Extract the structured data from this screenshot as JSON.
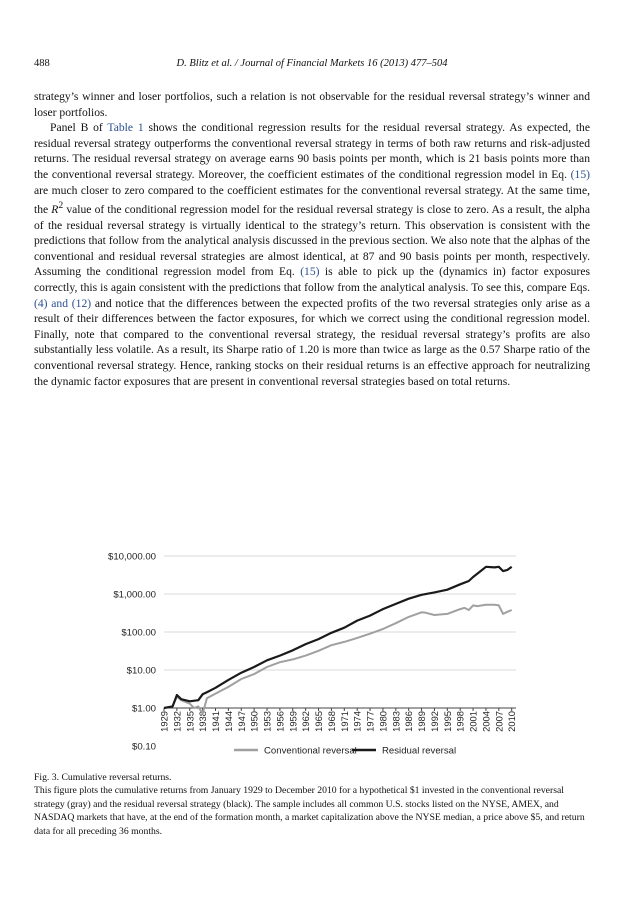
{
  "header": {
    "page_number": "488",
    "running_head": "D. Blitz et al. / Journal of Financial Markets 16 (2013) 477–504"
  },
  "body": {
    "p1": "strategy’s winner and loser portfolios, such a relation is not observable for the residual reversal strategy’s winner and loser portfolios.",
    "p2_pre_table": "Panel B of ",
    "table_ref": "Table 1",
    "p2_a": " shows the conditional regression results for the residual reversal strategy. As expected, the residual reversal strategy outperforms the conventional reversal strategy in terms of both raw returns and risk-adjusted returns. The residual reversal strategy on average earns 90 basis points per month, which is 21 basis points more than the conventional reversal strategy. Moreover, the coefficient estimates of the conditional regression model in Eq. ",
    "eq15_ref_1": "(15)",
    "p2_b": " are much closer to zero compared to the coefficient estimates for the conventional reversal strategy. At the same time, the ",
    "r2_symbol": "R",
    "r2_sup": "2",
    "p2_c": " value of the conditional regression model for the residual reversal strategy is close to zero. As a result, the alpha of the residual reversal strategy is virtually identical to the strategy’s return. This observation is consistent with the predictions that follow from the analytical analysis discussed in the previous section. We also note that the alphas of the conventional and residual reversal strategies are almost identical, at 87 and 90 basis points per month, respectively. Assuming the conditional regression model from Eq. ",
    "eq15_ref_2": "(15)",
    "p2_d": " is able to pick up the (dynamics in) factor exposures correctly, this is again consistent with the predictions that follow from the analytical analysis. To see this, compare Eqs. ",
    "eq4_12_ref": "(4) and (12)",
    "p2_e": " and notice that the differences between the expected profits of the two reversal strategies only arise as a result of their differences between the factor exposures, for which we correct using the conditional regression model. Finally, note that compared to the conventional reversal strategy, the residual reversal strategy’s profits are also substantially less volatile. As a result, its Sharpe ratio of 1.20 is more than twice as large as the 0.57 Sharpe ratio of the conventional reversal strategy. Hence, ranking stocks on their residual returns is an effective approach for neutralizing the dynamic factor exposures that are present in conventional reversal strategies based on total returns."
  },
  "chart_data": {
    "type": "line",
    "y_scale": "log",
    "ylim": [
      0.1,
      10000
    ],
    "y_ticks": [
      "$0.10",
      "$1.00",
      "$10.00",
      "$100.00",
      "$1,000.00",
      "$10,000.00"
    ],
    "y_tick_values": [
      0.1,
      1,
      10,
      100,
      1000,
      10000
    ],
    "x_ticks": [
      "1929",
      "1932",
      "1935",
      "1938",
      "1941",
      "1944",
      "1947",
      "1950",
      "1953",
      "1956",
      "1959",
      "1962",
      "1965",
      "1968",
      "1971",
      "1974",
      "1977",
      "1980",
      "1983",
      "1986",
      "1989",
      "1992",
      "1995",
      "1998",
      "2001",
      "2004",
      "2007",
      "2010"
    ],
    "grid": "horizontal",
    "legend_position": "bottom",
    "series": [
      {
        "name": "Conventional reversal",
        "color": "#a0a0a0",
        "x": [
          1929,
          1931,
          1932,
          1933,
          1935,
          1936,
          1937,
          1938,
          1939,
          1941,
          1944,
          1947,
          1950,
          1953,
          1956,
          1959,
          1962,
          1965,
          1968,
          1971,
          1974,
          1977,
          1980,
          1983,
          1986,
          1989,
          1990,
          1992,
          1995,
          1998,
          1999,
          2000,
          2001,
          2002,
          2004,
          2006,
          2007,
          2008,
          2009,
          2010
        ],
        "y": [
          1,
          1.1,
          2.0,
          1.6,
          1.3,
          1.0,
          1.1,
          0.7,
          1.8,
          2.4,
          3.6,
          5.8,
          7.8,
          12,
          16,
          19,
          24,
          32,
          45,
          55,
          70,
          90,
          120,
          170,
          250,
          330,
          320,
          280,
          300,
          400,
          430,
          380,
          500,
          480,
          520,
          520,
          500,
          300,
          340,
          380
        ]
      },
      {
        "name": "Residual reversal",
        "color": "#1a1a1a",
        "x": [
          1929,
          1931,
          1932,
          1933,
          1935,
          1937,
          1938,
          1939,
          1941,
          1944,
          1947,
          1950,
          1953,
          1956,
          1959,
          1962,
          1965,
          1968,
          1971,
          1974,
          1977,
          1980,
          1983,
          1986,
          1989,
          1992,
          1995,
          1998,
          2000,
          2001,
          2003,
          2004,
          2006,
          2007,
          2008,
          2009,
          2010
        ],
        "y": [
          1,
          1.1,
          2.2,
          1.7,
          1.5,
          1.6,
          2.3,
          2.6,
          3.4,
          5.5,
          8.5,
          12,
          18,
          24,
          33,
          48,
          65,
          95,
          130,
          200,
          270,
          400,
          550,
          750,
          950,
          1100,
          1300,
          1800,
          2200,
          2800,
          4200,
          5200,
          5000,
          5200,
          4000,
          4300,
          5200
        ]
      }
    ]
  },
  "caption": {
    "title": "Fig. 3.  Cumulative reversal returns.",
    "text": "This figure plots the cumulative returns from January 1929 to December 2010 for a hypothetical $1 invested in the conventional reversal strategy (gray) and the residual reversal strategy (black). The sample includes all common U.S. stocks listed on the NYSE, AMEX, and NASDAQ markets that have, at the end of the formation month, a market capitalization above the NYSE median, a price above $5, and return data for all preceding 36 months."
  }
}
